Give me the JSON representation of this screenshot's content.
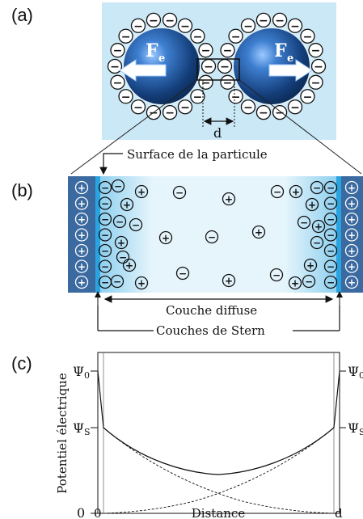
{
  "panel_a": {
    "label": "(a)",
    "force_label": "F",
    "force_subscript": "e",
    "distance_label": "d",
    "negative_ion": "−"
  },
  "panel_b": {
    "label": "(b)",
    "surface_label": "Surface de la particule",
    "diffuse_label": "Couche diffuse",
    "stern_label": "Couches de Stern",
    "positive_ion": "+",
    "negative_ion": "−"
  },
  "panel_c": {
    "label": "(c)",
    "ylabel": "Potentiel électrique",
    "xlabel": "Distance",
    "y_ticks": {
      "psi0": "Ψ",
      "psi0_sub": "0",
      "psiS": "Ψ",
      "psiS_sub": "S",
      "zero": "0"
    },
    "x_ticks": {
      "start": "0",
      "end": "d"
    }
  },
  "colors": {
    "particle": "#1f4e8c",
    "medium": "#cbe8f6",
    "plate": "#3a6aa0",
    "stern_line": "#2aa4e0"
  }
}
